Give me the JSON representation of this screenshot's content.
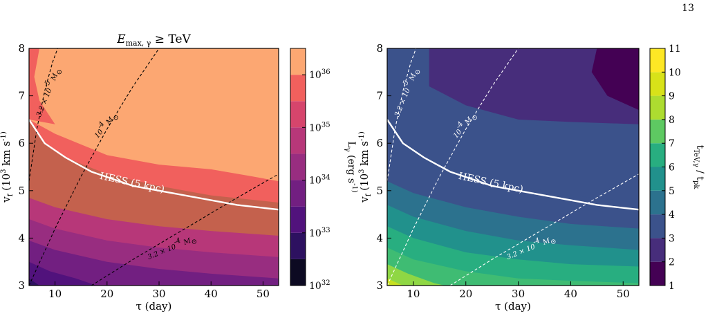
{
  "page": {
    "number": "13"
  },
  "chart_data": [
    {
      "type": "contour",
      "title": "E",
      "title_sub": "max, γ",
      "title_rest": " ≥  TeV",
      "xlabel": "τ (day)",
      "ylabel": "v_f (10^3 km s^-1)",
      "xlim": [
        5,
        53
      ],
      "ylim": [
        3,
        8
      ],
      "x_ticks": [
        10,
        20,
        30,
        40,
        50
      ],
      "y_ticks": [
        3,
        4,
        5,
        6,
        7,
        8
      ],
      "colorbar": {
        "label": "L_γ (erg s^-1)",
        "scale": "log",
        "ticks": [
          "10^32",
          "10^33",
          "10^34",
          "10^35",
          "10^36"
        ],
        "tick_values": [
          32,
          33,
          34,
          35,
          36
        ],
        "levels": [
          32,
          32.5,
          33,
          33.5,
          34,
          34.5,
          35,
          35.5,
          36,
          36.5
        ],
        "colors": [
          "#0d0a22",
          "#2d1160",
          "#51127c",
          "#721f81",
          "#982d80",
          "#b73779",
          "#d6456c",
          "#f1605d",
          "#fca772",
          "#fde5a7"
        ]
      },
      "filled_levels": [
        {
          "level": 32.5,
          "color": "#2d1160",
          "points": [
            [
              5,
              3.0
            ],
            [
              7,
              3.0
            ],
            [
              5,
              3.15
            ]
          ]
        },
        {
          "level": 33.0,
          "color": "#51127c",
          "points": [
            [
              5,
              3.5
            ],
            [
              9,
              3.3
            ],
            [
              14,
              3.15
            ],
            [
              18,
              3.0
            ]
          ]
        },
        {
          "level": 33.5,
          "color": "#721f81",
          "points": [
            [
              5,
              3.95
            ],
            [
              10,
              3.75
            ],
            [
              20,
              3.5
            ],
            [
              30,
              3.35
            ],
            [
              40,
              3.25
            ],
            [
              53,
              3.15
            ]
          ]
        },
        {
          "level": 34.0,
          "color": "#982d80",
          "points": [
            [
              5,
              4.4
            ],
            [
              10,
              4.2
            ],
            [
              20,
              3.95
            ],
            [
              30,
              3.8
            ],
            [
              40,
              3.7
            ],
            [
              53,
              3.6
            ]
          ]
        },
        {
          "level": 34.5,
          "color": "#b73779",
          "points": [
            [
              5,
              4.85
            ],
            [
              10,
              4.65
            ],
            [
              20,
              4.4
            ],
            [
              30,
              4.25
            ],
            [
              40,
              4.15
            ],
            [
              53,
              4.05
            ]
          ]
        },
        {
          "level": 35.0,
          "color": "#c4614d",
          "points": [
            [
              5,
              6.5
            ],
            [
              8,
              6.0
            ],
            [
              12,
              5.7
            ],
            [
              20,
              5.35
            ],
            [
              30,
              5.1
            ],
            [
              40,
              4.9
            ],
            [
              53,
              4.75
            ]
          ]
        },
        {
          "level": 35.5,
          "color": "#f1605d",
          "points": [
            [
              5,
              6.5
            ],
            [
              10,
              6.2
            ],
            [
              20,
              5.75
            ],
            [
              30,
              5.55
            ],
            [
              40,
              5.45
            ],
            [
              48,
              5.3
            ],
            [
              53,
              5.2
            ]
          ]
        },
        {
          "level": 36.0,
          "color": "#fca772",
          "points": [
            [
              7,
              8.0
            ],
            [
              6,
              7.4
            ],
            [
              7,
              6.9
            ],
            [
              10,
              6.4
            ],
            [
              20,
              6.0
            ],
            [
              30,
              5.8
            ],
            [
              40,
              5.7
            ],
            [
              53,
              5.6
            ]
          ]
        }
      ],
      "hess_curve": {
        "label": "HESS (5 kpc)",
        "x": [
          5,
          8,
          12,
          17,
          25,
          35,
          45,
          53
        ],
        "y": [
          6.5,
          6.0,
          5.7,
          5.4,
          5.1,
          4.9,
          4.7,
          4.6
        ]
      },
      "mass_lines": [
        {
          "label": "3.2 × 10^-5 M_⊙",
          "x": [
            5,
            6.5,
            8,
            9.5,
            10.5
          ],
          "y": [
            5.2,
            6.3,
            7.1,
            7.7,
            8.0
          ]
        },
        {
          "label": "10^-4 M_⊙",
          "x": [
            5,
            10,
            15,
            20,
            25,
            30
          ],
          "y": [
            3.0,
            4.2,
            5.3,
            6.3,
            7.2,
            8.0
          ]
        },
        {
          "label": "3.2 × 10^-4 M_⊙",
          "x": [
            17,
            25,
            35,
            45,
            53
          ],
          "y": [
            3.0,
            3.55,
            4.2,
            4.85,
            5.35
          ]
        }
      ]
    },
    {
      "type": "contour",
      "xlabel": "τ (day)",
      "ylabel": "v_f (10^3 km s^-1)",
      "xlim": [
        5,
        53
      ],
      "ylim": [
        3,
        8
      ],
      "x_ticks": [
        10,
        20,
        30,
        40,
        50
      ],
      "y_ticks": [
        3,
        4,
        5,
        6,
        7,
        8
      ],
      "colorbar": {
        "label": "t_TeV,γ / t_pk",
        "scale": "linear",
        "ticks": [
          "1",
          "2",
          "3",
          "4",
          "5",
          "6",
          "7",
          "8",
          "9",
          "10",
          "11"
        ],
        "tick_values": [
          1,
          2,
          3,
          4,
          5,
          6,
          7,
          8,
          9,
          10,
          11
        ],
        "levels": [
          1,
          2,
          3,
          4,
          5,
          6,
          7,
          8,
          9,
          10,
          11
        ],
        "colors": [
          "#440154",
          "#472d7b",
          "#3b528b",
          "#2c728e",
          "#21918c",
          "#28ae80",
          "#5ec962",
          "#addc30",
          "#d8e219",
          "#fde725"
        ]
      },
      "filled_levels": [
        {
          "level": 3,
          "color": "#3b528b",
          "points": [
            [
              5,
              6.5
            ],
            [
              8,
              6.0
            ],
            [
              12,
              5.7
            ],
            [
              20,
              5.35
            ],
            [
              30,
              5.1
            ],
            [
              40,
              4.9
            ],
            [
              53,
              4.75
            ]
          ]
        },
        {
          "level": 4,
          "color": "#2c728e",
          "points": [
            [
              5,
              5.2
            ],
            [
              10,
              4.95
            ],
            [
              20,
              4.65
            ],
            [
              30,
              4.45
            ],
            [
              40,
              4.3
            ],
            [
              53,
              4.2
            ]
          ]
        },
        {
          "level": 5,
          "color": "#21918c",
          "points": [
            [
              5,
              4.7
            ],
            [
              10,
              4.45
            ],
            [
              20,
              4.15
            ],
            [
              30,
              3.95
            ],
            [
              40,
              3.85
            ],
            [
              53,
              3.75
            ]
          ]
        },
        {
          "level": 6,
          "color": "#28ae80",
          "points": [
            [
              5,
              4.25
            ],
            [
              10,
              4.0
            ],
            [
              20,
              3.7
            ],
            [
              30,
              3.55
            ],
            [
              40,
              3.45
            ],
            [
              53,
              3.4
            ]
          ]
        },
        {
          "level": 7,
          "color": "#3fbc73",
          "points": [
            [
              5,
              3.8
            ],
            [
              10,
              3.55
            ],
            [
              20,
              3.3
            ],
            [
              30,
              3.15
            ],
            [
              40,
              3.1
            ],
            [
              53,
              3.05
            ]
          ]
        },
        {
          "level": 8,
          "color": "#8fd744",
          "points": [
            [
              5,
              3.45
            ],
            [
              9,
              3.25
            ],
            [
              14,
              3.05
            ],
            [
              16,
              3.0
            ]
          ]
        },
        {
          "level": 9,
          "color": "#c7e020",
          "points": [
            [
              5,
              3.15
            ],
            [
              8,
              3.0
            ]
          ]
        }
      ],
      "top_region": {
        "level": 2,
        "color": "#472d7b",
        "points": [
          [
            13,
            8.0
          ],
          [
            13,
            7.2
          ],
          [
            20,
            6.8
          ],
          [
            30,
            6.5
          ],
          [
            40,
            6.45
          ],
          [
            53,
            6.4
          ]
        ]
      },
      "corner_region": {
        "level": 1,
        "color": "#440154",
        "points": [
          [
            45,
            8.0
          ],
          [
            44,
            7.5
          ],
          [
            47,
            7.0
          ],
          [
            53,
            6.7
          ]
        ]
      },
      "hess_curve": {
        "label": "HESS (5 kpc)",
        "x": [
          5,
          8,
          12,
          17,
          25,
          35,
          45,
          53
        ],
        "y": [
          6.5,
          6.0,
          5.7,
          5.4,
          5.1,
          4.9,
          4.7,
          4.6
        ]
      },
      "mass_lines": [
        {
          "label": "3.2 × 10^-5 M_⊙",
          "x": [
            5,
            6.5,
            8,
            9.5,
            10.5
          ],
          "y": [
            5.2,
            6.3,
            7.1,
            7.7,
            8.0
          ]
        },
        {
          "label": "10^-4 M_⊙",
          "x": [
            5,
            10,
            15,
            20,
            25,
            30
          ],
          "y": [
            3.0,
            4.2,
            5.3,
            6.3,
            7.2,
            8.0
          ]
        },
        {
          "label": "3.2 × 10^-4 M_⊙",
          "x": [
            17,
            25,
            35,
            45,
            53
          ],
          "y": [
            3.0,
            3.55,
            4.2,
            4.85,
            5.35
          ]
        }
      ]
    }
  ]
}
